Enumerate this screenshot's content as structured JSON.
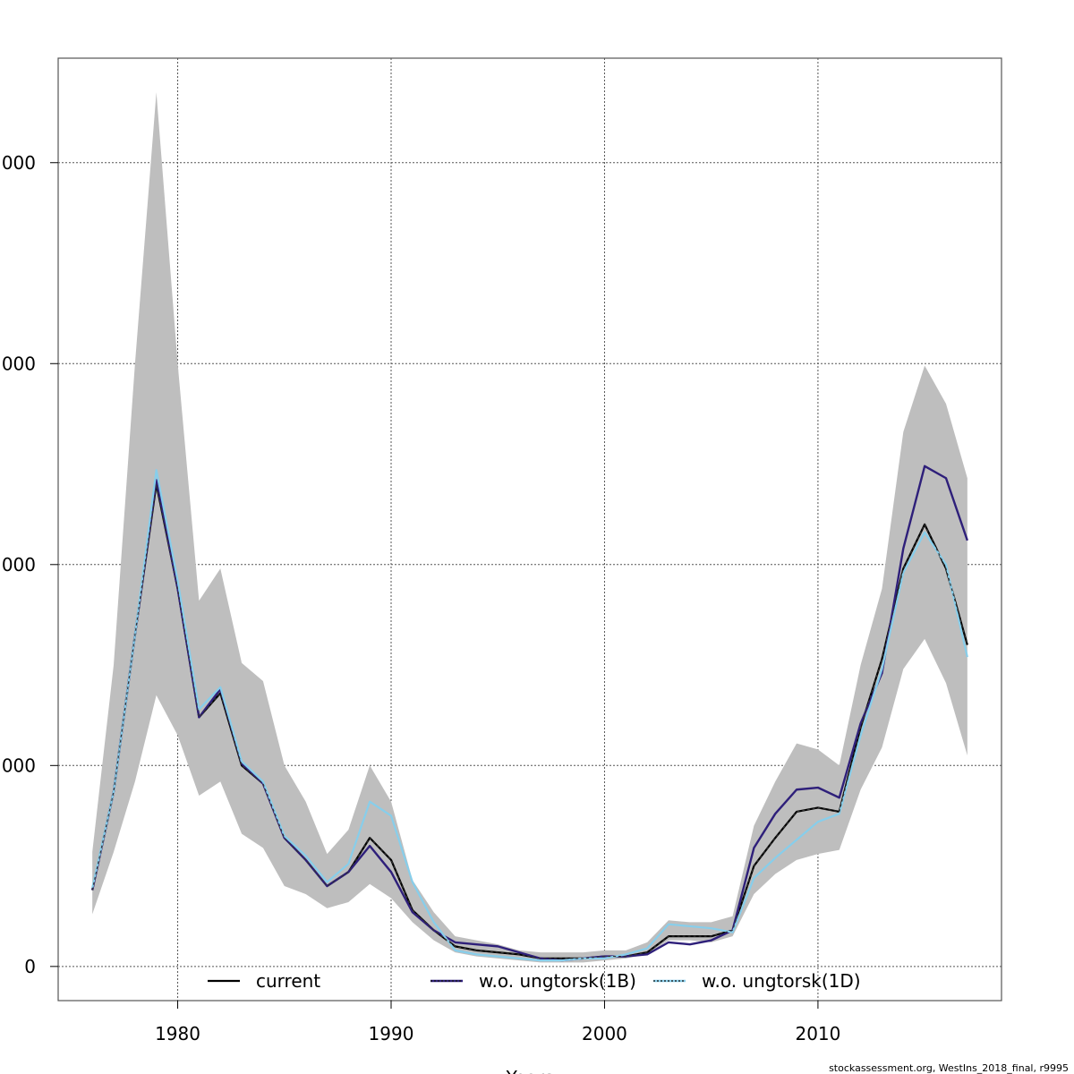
{
  "chart_data": {
    "type": "line",
    "title": "",
    "xlabel": "Years",
    "ylabel": "",
    "x": [
      1976,
      1977,
      1978,
      1979,
      1980,
      1981,
      1982,
      1983,
      1984,
      1985,
      1986,
      1987,
      1988,
      1989,
      1990,
      1991,
      1992,
      1993,
      1994,
      1995,
      1996,
      1997,
      1998,
      1999,
      2000,
      2001,
      2002,
      2003,
      2004,
      2005,
      2006,
      2007,
      2008,
      2009,
      2010,
      2011,
      2012,
      2013,
      2014,
      2015,
      2016,
      2017
    ],
    "xlim": [
      1974.4,
      2018.6
    ],
    "ylim": [
      -17,
      452
    ],
    "x_ticks": [
      1980,
      1990,
      2000,
      2010
    ],
    "x_tick_labels": [
      "1980",
      "1990",
      "2000",
      "2010"
    ],
    "y_ticks": [
      0,
      100,
      200,
      300,
      400
    ],
    "y_tick_labels": [
      "0",
      "000",
      "000",
      "000",
      "000"
    ],
    "grid": true,
    "legend_position": "bottom",
    "band": {
      "upper": [
        57,
        150,
        300,
        435,
        300,
        182,
        198,
        151,
        142,
        100,
        82,
        56,
        68,
        100,
        82,
        43,
        27,
        15,
        13,
        11,
        8,
        7,
        7,
        7,
        8,
        8,
        12,
        23,
        22,
        22,
        25,
        70,
        92,
        111,
        108,
        100,
        150,
        188,
        266,
        299,
        280,
        243
      ],
      "lower": [
        26,
        57,
        92,
        135,
        115,
        85,
        92,
        66,
        59,
        40,
        36,
        29,
        32,
        41,
        34,
        22,
        13,
        7,
        5,
        4,
        3,
        2,
        2,
        2,
        3,
        4,
        6,
        13,
        13,
        12,
        15,
        36,
        46,
        53,
        56,
        58,
        88,
        109,
        148,
        163,
        141,
        105
      ]
    },
    "series": [
      {
        "name": "current",
        "color": "#000000",
        "values": [
          38,
          87,
          165,
          240,
          188,
          124,
          136,
          100,
          91,
          64,
          53,
          40,
          47,
          64,
          53,
          28,
          18,
          10,
          8,
          7,
          6,
          4,
          4,
          4,
          5,
          5,
          7,
          15,
          15,
          15,
          18,
          50,
          64,
          77,
          79,
          77,
          119,
          153,
          198,
          220,
          198,
          160
        ]
      },
      {
        "name": "w.o. ungtorsk(1B)",
        "color": "#2e1f7a",
        "values": [
          38,
          87,
          165,
          242,
          188,
          124,
          138,
          101,
          91,
          64,
          53,
          40,
          47,
          60,
          47,
          27,
          18,
          12,
          11,
          10,
          7,
          4,
          3,
          4,
          5,
          5,
          6,
          12,
          11,
          13,
          18,
          59,
          76,
          88,
          89,
          84,
          121,
          146,
          208,
          249,
          243,
          212
        ]
      },
      {
        "name": "w.o. ungtorsk(1D)",
        "color": "#87ceeb",
        "values": [
          39,
          87,
          165,
          247,
          192,
          128,
          139,
          102,
          92,
          65,
          55,
          42,
          51,
          82,
          75,
          42,
          22,
          8,
          6,
          5,
          4,
          3,
          3,
          4,
          4,
          6,
          9,
          21,
          20,
          19,
          17,
          44,
          54,
          63,
          72,
          76,
          115,
          148,
          196,
          216,
          200,
          154
        ]
      }
    ]
  },
  "legend": {
    "current": "current",
    "series_b": "w.o. ungtorsk(1B)",
    "series_d": "w.o. ungtorsk(1D)"
  },
  "x_axis_title": "Years",
  "credit": "stockassessment.org, WestIns_2018_final, r9995"
}
